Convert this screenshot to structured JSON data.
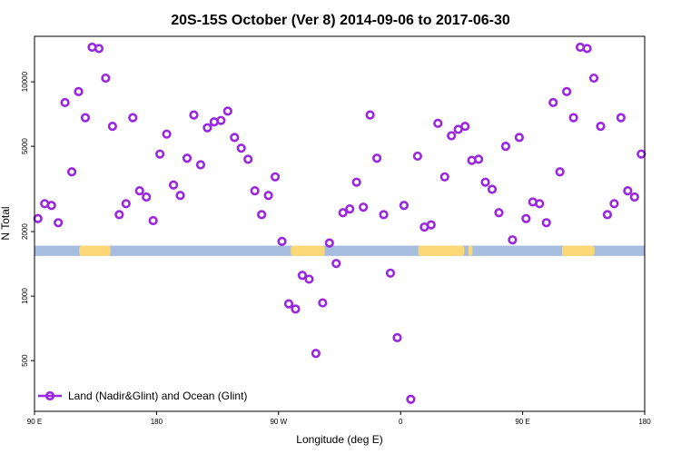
{
  "colors": {
    "series": "#9a27e0",
    "ocean_band": "#a7bde0",
    "land_band": "#fbd775",
    "frame": "#000000"
  },
  "chart_data": {
    "type": "scatter",
    "title": "20S-15S October (Ver 8)   2014-09-06 to 2017-06-30",
    "xlabel": "Longitude (deg E)",
    "ylabel": "N Total",
    "x_ticks": [
      {
        "value": 90,
        "label": "90 E"
      },
      {
        "value": 180,
        "label": "180"
      },
      {
        "value": 270,
        "label": "90 W"
      },
      {
        "value": 360,
        "label": "0"
      },
      {
        "value": 450,
        "label": "90 E"
      },
      {
        "value": 540,
        "label": "180"
      }
    ],
    "y_ticks": [
      {
        "value": 500,
        "label": "500"
      },
      {
        "value": 1000,
        "label": "1000"
      },
      {
        "value": 2000,
        "label": "2000"
      },
      {
        "value": 5000,
        "label": "5000"
      },
      {
        "value": 10000,
        "label": "10000"
      }
    ],
    "xlim": [
      90,
      540
    ],
    "ylim": [
      290,
      16300
    ],
    "y_scale": "log",
    "grid": false,
    "legend_position": "bottom-left",
    "surface_band": {
      "y_range": [
        1540,
        1720
      ],
      "land_ranges": [
        [
          123,
          146
        ],
        [
          279,
          304
        ],
        [
          373,
          407
        ],
        [
          410,
          413
        ],
        [
          479,
          503
        ]
      ]
    },
    "series": [
      {
        "name": "Land (Nadir&Glint) and Ocean (Glint)",
        "x": [
          92.5,
          97.5,
          102.5,
          107.5,
          112.5,
          117.5,
          122.5,
          127.5,
          132.5,
          137.5,
          142.5,
          147.5,
          152.5,
          157.5,
          162.5,
          167.5,
          172.5,
          177.5,
          182.5,
          187.5,
          192.5,
          197.5,
          202.5,
          207.5,
          212.5,
          217.5,
          222.5,
          227.5,
          232.5,
          237.5,
          242.5,
          247.5,
          252.5,
          257.5,
          262.5,
          267.5,
          272.5,
          277.5,
          282.5,
          287.5,
          292.5,
          297.5,
          302.5,
          307.5,
          312.5,
          317.5,
          322.5,
          327.5,
          332.5,
          337.5,
          342.5,
          347.5,
          352.5,
          357.5,
          362.5,
          367.5,
          372.5,
          377.5,
          382.5,
          387.5,
          392.5,
          397.5,
          402.5,
          407.5,
          412.5,
          417.5,
          422.5,
          427.5,
          432.5,
          437.5,
          442.5,
          447.5,
          452.5,
          457.5,
          462.5,
          467.5,
          472.5,
          477.5,
          482.5,
          487.5,
          492.5,
          497.5,
          502.5,
          507.5,
          512.5,
          517.5,
          522.5,
          527.5,
          532.5,
          537.5
        ],
        "y": [
          2300,
          2700,
          2650,
          2200,
          8000,
          3800,
          9000,
          6800,
          14500,
          14300,
          10400,
          6200,
          2400,
          2700,
          6800,
          3100,
          2900,
          2250,
          4600,
          5700,
          3300,
          2950,
          4400,
          7000,
          4100,
          6100,
          6500,
          6600,
          7300,
          5500,
          4900,
          4350,
          3100,
          2400,
          2950,
          3600,
          1800,
          920,
          870,
          1250,
          1200,
          540,
          930,
          1770,
          1420,
          2450,
          2550,
          3400,
          2600,
          7000,
          4400,
          2400,
          1280,
          640,
          2650,
          330,
          4500,
          2100,
          2150,
          6400,
          3600,
          5600,
          6000,
          6200,
          4300,
          4350,
          3400,
          3150,
          2450,
          5000,
          1830,
          5500,
          2300,
          2750,
          2700,
          2200,
          8000,
          3800,
          9000,
          6800,
          14500,
          14300,
          10400,
          6200,
          2400,
          2700,
          6800,
          3100,
          2900,
          4600
        ]
      }
    ]
  }
}
